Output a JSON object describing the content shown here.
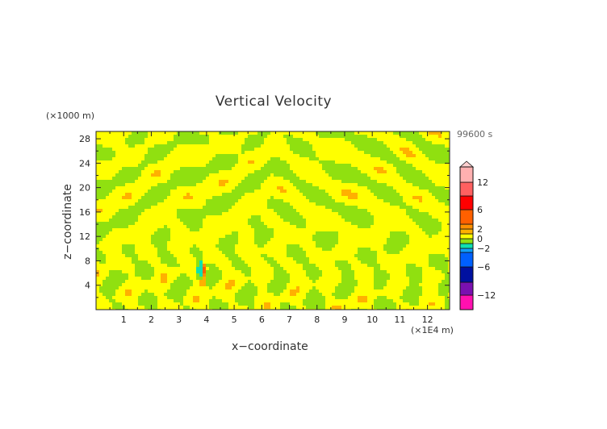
{
  "chart_data": {
    "type": "heatmap",
    "title": "Vertical Velocity",
    "xlabel": "x−coordinate",
    "ylabel": "z−coordinate",
    "x_unit": "(×1E4 m)",
    "y_unit": "(×1000 m)",
    "time_label": "99600 s",
    "xlim": [
      0,
      12.8
    ],
    "ylim": [
      0,
      29.2
    ],
    "x_ticks": [
      1,
      2,
      3,
      4,
      5,
      6,
      7,
      8,
      9,
      10,
      11,
      12
    ],
    "y_ticks": [
      4,
      8,
      12,
      16,
      20,
      24,
      28
    ],
    "colorbar": {
      "levels": [
        -15,
        -12,
        -9,
        -6,
        -3,
        -2,
        -1,
        0,
        1,
        2,
        3,
        6,
        9,
        12,
        15
      ],
      "colors": [
        "#ff10b0",
        "#7a10b0",
        "#0010a0",
        "#0060ff",
        "#10a0ff",
        "#10e0b0",
        "#90e010",
        "#ffff00",
        "#ffb000",
        "#ff9000",
        "#ff6000",
        "#ff0000",
        "#ff6060",
        "#ffb0b0"
      ],
      "tick_labels": [
        "12",
        "6",
        "2",
        "0",
        "−2",
        "−6",
        "−12"
      ],
      "tick_values": [
        12,
        6,
        2,
        0,
        -2,
        -6,
        -12
      ],
      "extend": "max"
    },
    "field_description_visible": "mostly values between -1 and 1 (yellow/green bands), localized anomaly near x=3.8, z=6.5"
  }
}
